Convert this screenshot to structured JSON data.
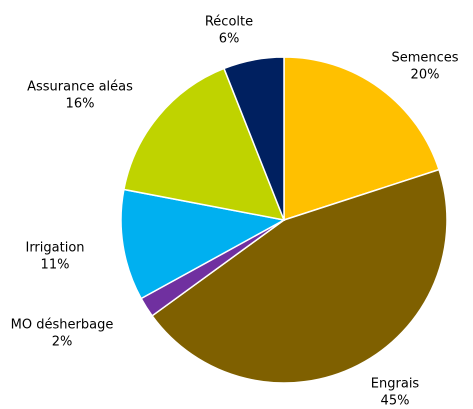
{
  "chart_data": {
    "type": "pie",
    "categories": [
      "Semences",
      "Engrais",
      "MO désherbage",
      "Irrigation",
      "Assurance aléas",
      "Récolte"
    ],
    "values": [
      20,
      45,
      2,
      11,
      16,
      6
    ],
    "value_labels": [
      "20%",
      "45%",
      "2%",
      "11%",
      "16%",
      "6%"
    ],
    "colors": [
      "#FFC000",
      "#7F6000",
      "#7030A0",
      "#00B0F0",
      "#BFD300",
      "#002060"
    ]
  }
}
